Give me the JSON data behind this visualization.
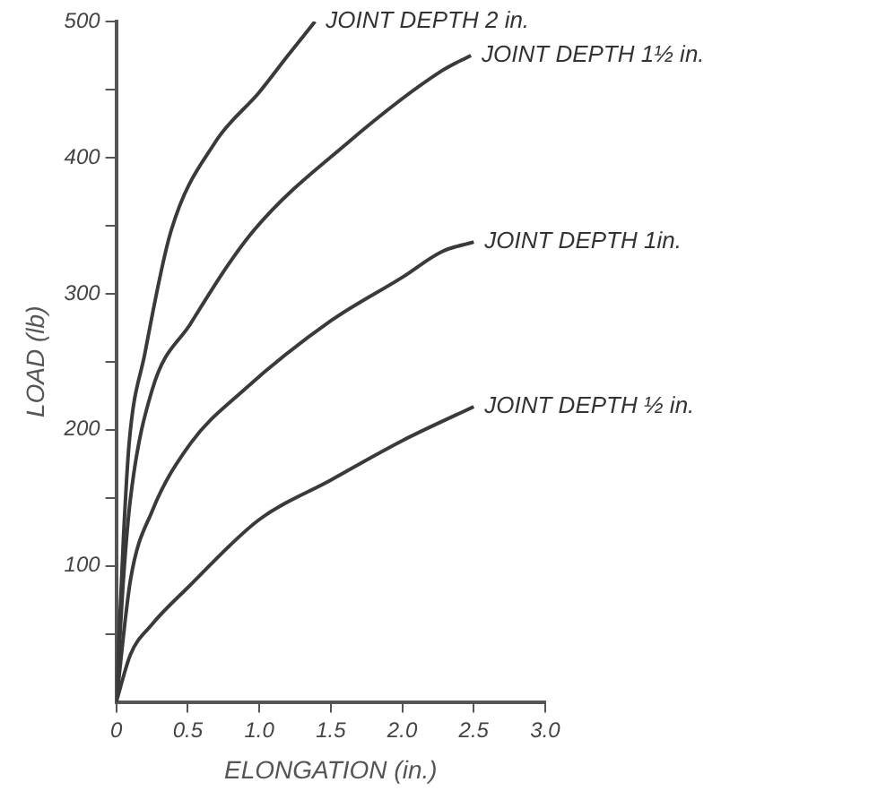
{
  "chart_data": {
    "type": "line",
    "xlabel": "ELONGATION (in.)",
    "ylabel": "LOAD (lb)",
    "xlim": [
      0,
      3
    ],
    "ylim": [
      0,
      500
    ],
    "xticks": [
      0,
      0.5,
      {
        "value": 1,
        "label": "1.0"
      },
      1.5,
      {
        "value": 2,
        "label": "2.0"
      },
      2.5,
      {
        "value": 3,
        "label": "3.0"
      }
    ],
    "yticks": [
      {
        "value": 50,
        "label": null
      },
      100,
      {
        "value": 150,
        "label": null
      },
      200,
      {
        "value": 250,
        "label": null
      },
      300,
      {
        "value": 350,
        "label": null
      },
      400,
      {
        "value": 450,
        "label": null
      },
      500
    ],
    "grid": false,
    "legend": false,
    "marker": "none",
    "line_style": "solid",
    "series": [
      {
        "name": "JOINT DEPTH 2 in.",
        "color": "#3a3a3a",
        "x": [
          0,
          0.05,
          0.09,
          0.2,
          0.38,
          0.69,
          1.0,
          1.2,
          1.39
        ],
        "values": [
          0,
          120,
          190,
          256,
          345,
          411,
          448,
          475,
          500
        ]
      },
      {
        "name": "JOINT DEPTH 1½ in.",
        "color": "#3a3a3a",
        "x": [
          0,
          0.05,
          0.1,
          0.25,
          0.52,
          0.95,
          1.62,
          2.28,
          2.48
        ],
        "values": [
          0,
          90,
          150,
          229,
          278,
          345,
          411,
          464,
          475
        ]
      },
      {
        "name": "JOINT DEPTH 1in.",
        "color": "#3a3a3a",
        "x": [
          0,
          0.1,
          0.25,
          0.52,
          0.89,
          1.5,
          2.0,
          2.28,
          2.5
        ],
        "values": [
          0,
          90,
          140,
          190,
          229,
          280,
          312,
          331,
          338
        ]
      },
      {
        "name": "JOINT DEPTH ½ in.",
        "color": "#3a3a3a",
        "x": [
          0,
          0.1,
          0.25,
          0.5,
          1.0,
          1.5,
          2.0,
          2.5
        ],
        "values": [
          0,
          35,
          57,
          84,
          134,
          163,
          192,
          217
        ]
      }
    ]
  }
}
